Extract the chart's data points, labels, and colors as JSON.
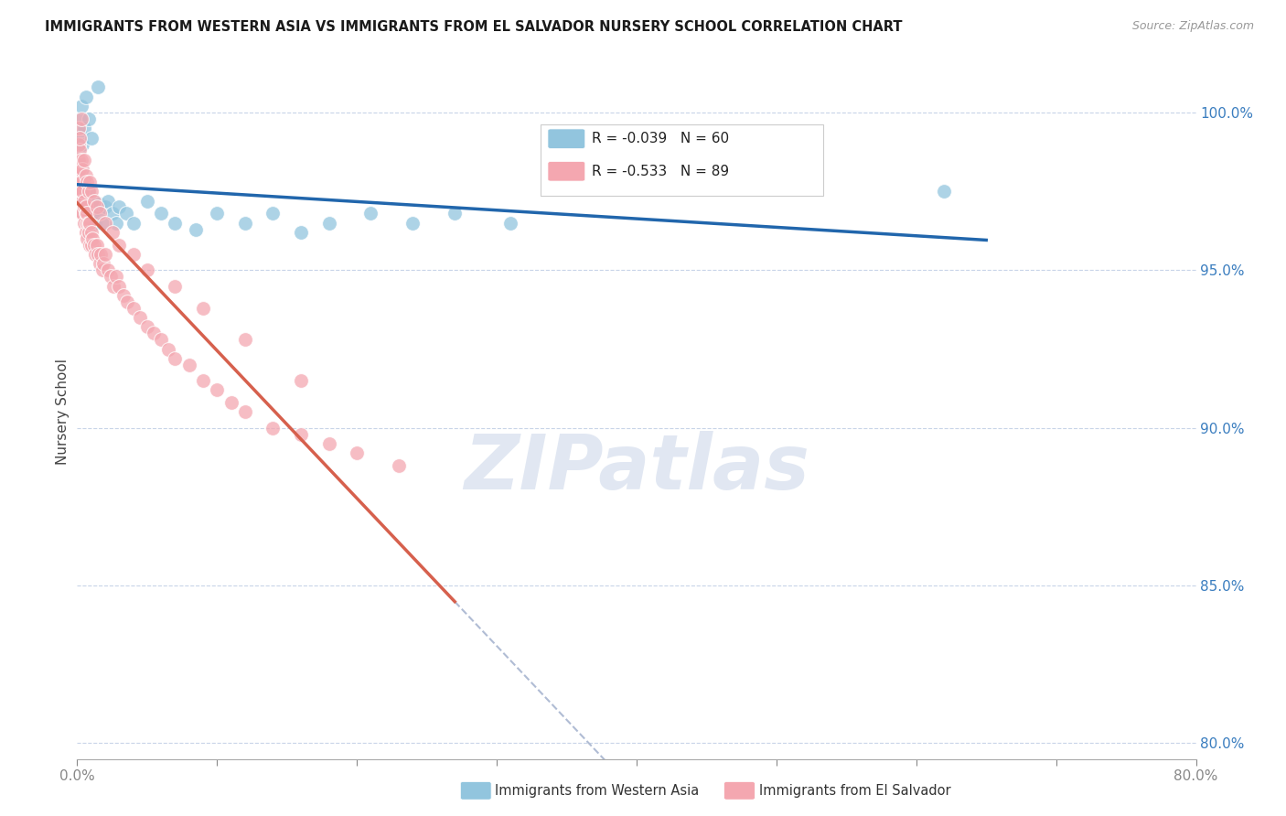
{
  "title": "IMMIGRANTS FROM WESTERN ASIA VS IMMIGRANTS FROM EL SALVADOR NURSERY SCHOOL CORRELATION CHART",
  "source": "Source: ZipAtlas.com",
  "ylabel": "Nursery School",
  "blue_color": "#92c5de",
  "pink_color": "#f4a7b0",
  "trendline_blue_color": "#2166ac",
  "trendline_pink_color": "#d6604d",
  "trendline_dashed_color": "#b0bcd4",
  "legend_blue_label": "Immigrants from Western Asia",
  "legend_pink_label": "Immigrants from El Salvador",
  "legend_blue_R": "-0.039",
  "legend_blue_N": "60",
  "legend_pink_R": "-0.533",
  "legend_pink_N": "89",
  "blue_color_legend": "#92c5de",
  "pink_color_legend": "#f4a7b0",
  "watermark_color": "#cdd8ea",
  "watermark_text": "ZIPatlas",
  "xmin": 0.0,
  "xmax": 0.8,
  "ymin": 79.5,
  "ymax": 101.5,
  "yticks": [
    80.0,
    85.0,
    90.0,
    95.0,
    100.0
  ],
  "ytick_labels": [
    "80.0%",
    "85.0%",
    "90.0%",
    "95.0%",
    "100.0%"
  ],
  "blue_x": [
    0.001,
    0.001,
    0.001,
    0.002,
    0.002,
    0.002,
    0.002,
    0.003,
    0.003,
    0.003,
    0.004,
    0.004,
    0.005,
    0.005,
    0.006,
    0.006,
    0.007,
    0.007,
    0.008,
    0.008,
    0.009,
    0.01,
    0.011,
    0.012,
    0.013,
    0.014,
    0.015,
    0.016,
    0.018,
    0.02,
    0.022,
    0.025,
    0.028,
    0.03,
    0.035,
    0.04,
    0.05,
    0.06,
    0.07,
    0.085,
    0.1,
    0.12,
    0.14,
    0.16,
    0.18,
    0.21,
    0.24,
    0.27,
    0.31,
    0.38,
    0.001,
    0.002,
    0.003,
    0.004,
    0.005,
    0.006,
    0.008,
    0.01,
    0.015,
    0.62
  ],
  "blue_y": [
    98.5,
    98.8,
    99.1,
    99.3,
    98.0,
    97.5,
    97.8,
    97.2,
    97.6,
    98.2,
    97.4,
    97.0,
    97.8,
    96.8,
    97.5,
    97.0,
    97.3,
    96.7,
    97.5,
    97.0,
    97.2,
    97.0,
    96.8,
    97.2,
    96.5,
    97.0,
    96.8,
    97.1,
    96.5,
    97.0,
    97.2,
    96.8,
    96.5,
    97.0,
    96.8,
    96.5,
    97.2,
    96.8,
    96.5,
    96.3,
    96.8,
    96.5,
    96.8,
    96.2,
    96.5,
    96.8,
    96.5,
    96.8,
    96.5,
    97.8,
    99.5,
    99.8,
    100.2,
    99.0,
    99.5,
    100.5,
    99.8,
    99.2,
    100.8,
    97.5
  ],
  "pink_x": [
    0.001,
    0.001,
    0.001,
    0.001,
    0.002,
    0.002,
    0.002,
    0.002,
    0.003,
    0.003,
    0.003,
    0.003,
    0.004,
    0.004,
    0.004,
    0.005,
    0.005,
    0.005,
    0.006,
    0.006,
    0.006,
    0.007,
    0.007,
    0.007,
    0.008,
    0.008,
    0.009,
    0.009,
    0.01,
    0.01,
    0.011,
    0.012,
    0.013,
    0.014,
    0.015,
    0.016,
    0.017,
    0.018,
    0.019,
    0.02,
    0.022,
    0.024,
    0.026,
    0.028,
    0.03,
    0.033,
    0.036,
    0.04,
    0.045,
    0.05,
    0.055,
    0.06,
    0.065,
    0.07,
    0.08,
    0.09,
    0.1,
    0.11,
    0.12,
    0.14,
    0.16,
    0.18,
    0.2,
    0.23,
    0.001,
    0.002,
    0.003,
    0.004,
    0.005,
    0.006,
    0.007,
    0.008,
    0.009,
    0.01,
    0.012,
    0.014,
    0.016,
    0.02,
    0.025,
    0.03,
    0.04,
    0.05,
    0.07,
    0.09,
    0.12,
    0.16,
    0.001,
    0.002,
    0.003
  ],
  "pink_y": [
    98.2,
    97.8,
    98.5,
    97.5,
    98.0,
    97.5,
    98.2,
    97.2,
    97.8,
    97.2,
    97.5,
    96.8,
    97.2,
    96.8,
    97.5,
    97.0,
    96.5,
    97.2,
    96.8,
    96.2,
    97.0,
    96.5,
    96.8,
    96.0,
    96.5,
    96.2,
    96.5,
    95.8,
    96.2,
    95.8,
    96.0,
    95.8,
    95.5,
    95.8,
    95.5,
    95.2,
    95.5,
    95.0,
    95.2,
    95.5,
    95.0,
    94.8,
    94.5,
    94.8,
    94.5,
    94.2,
    94.0,
    93.8,
    93.5,
    93.2,
    93.0,
    92.8,
    92.5,
    92.2,
    92.0,
    91.5,
    91.2,
    90.8,
    90.5,
    90.0,
    89.8,
    89.5,
    89.2,
    88.8,
    99.0,
    98.8,
    98.5,
    98.2,
    98.5,
    98.0,
    97.8,
    97.5,
    97.8,
    97.5,
    97.2,
    97.0,
    96.8,
    96.5,
    96.2,
    95.8,
    95.5,
    95.0,
    94.5,
    93.8,
    92.8,
    91.5,
    99.5,
    99.2,
    99.8
  ]
}
